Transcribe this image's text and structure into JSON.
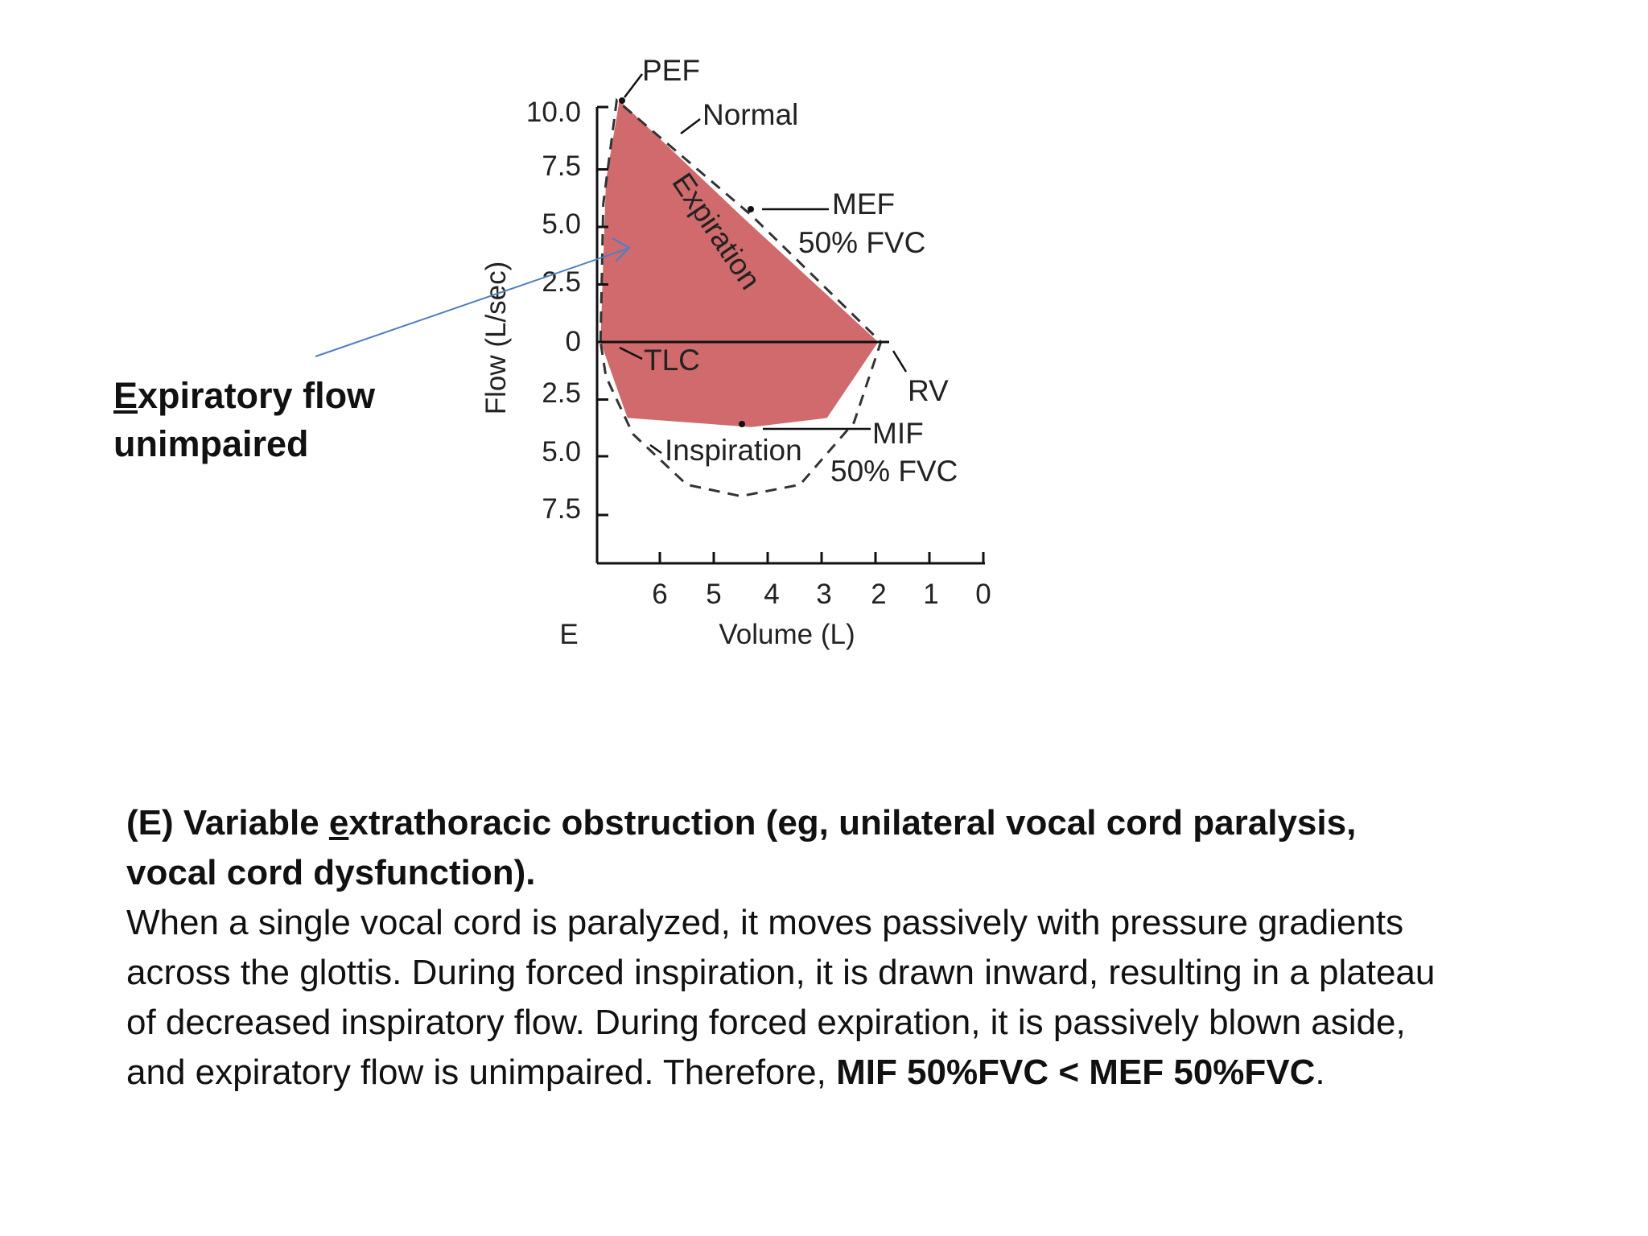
{
  "chart_data": {
    "type": "line",
    "title": "",
    "panel_label": "E",
    "xlabel": "Volume (L)",
    "ylabel": "Flow (L/sec)",
    "x_ticks": [
      "6",
      "5",
      "4",
      "3",
      "2",
      "1",
      "0"
    ],
    "y_ticks_expiration": [
      "10.0",
      "7.5",
      "5.0",
      "2.5",
      "0"
    ],
    "y_ticks_inspiration": [
      "2.5",
      "5.0",
      "7.5"
    ],
    "xlim": [
      7.1,
      0
    ],
    "ylim": [
      -10,
      10
    ],
    "series": [
      {
        "name": "Variable extrathoracic obstruction (expiration)",
        "style": "filled",
        "points": [
          [
            7.1,
            0
          ],
          [
            7.0,
            7.0
          ],
          [
            6.75,
            10.5
          ],
          [
            4.5,
            5.5
          ],
          [
            1.95,
            0
          ]
        ]
      },
      {
        "name": "Variable extrathoracic obstruction (inspiration)",
        "style": "filled",
        "points": [
          [
            7.1,
            0
          ],
          [
            6.6,
            -3.3
          ],
          [
            4.3,
            -3.7
          ],
          [
            2.9,
            -3.3
          ],
          [
            1.95,
            0
          ]
        ]
      },
      {
        "name": "Normal",
        "style": "dashed",
        "points": [
          [
            7.1,
            0
          ],
          [
            7.05,
            6
          ],
          [
            6.8,
            10.5
          ],
          [
            4.3,
            5.5
          ],
          [
            1.9,
            0
          ],
          [
            2.4,
            -3.5
          ],
          [
            3.4,
            -6.2
          ],
          [
            4.5,
            -6.7
          ],
          [
            5.5,
            -6.2
          ],
          [
            6.5,
            -4.0
          ],
          [
            7.0,
            -1.5
          ],
          [
            7.1,
            0
          ]
        ]
      }
    ],
    "annotations": [
      {
        "text": "PEF"
      },
      {
        "text": "Normal"
      },
      {
        "text": "MEF"
      },
      {
        "text": "50% FVC"
      },
      {
        "text": "Expiration"
      },
      {
        "text": "TLC"
      },
      {
        "text": "RV"
      },
      {
        "text": "MIF"
      },
      {
        "text": "50% FVC"
      },
      {
        "text": "Inspiration"
      }
    ]
  },
  "side_note": {
    "first_letter": "E",
    "rest_line1": "xpiratory flow",
    "line2": "unimpaired"
  },
  "caption": {
    "heading_prefix": "(E) Variable ",
    "heading_underlined": "e",
    "heading_rest": "xtrathoracic obstruction (eg, unilateral vocal cord paralysis, vocal cord dysfunction).",
    "body": "When a single vocal cord is paralyzed, it moves passively with pressure gradients across the glottis. During forced inspiration, it is drawn inward, resulting in a plateau of decreased inspiratory flow. During forced expiration, it is passively blown aside, and expiratory flow is unimpaired. Therefore, ",
    "conclusion": "MIF 50%FVC < MEF 50%FVC",
    "end": "."
  },
  "colors": {
    "fill": "#d06a6c",
    "axis": "#111111",
    "pointer_arrow": "#4f7fc3",
    "dash": "#333333"
  }
}
